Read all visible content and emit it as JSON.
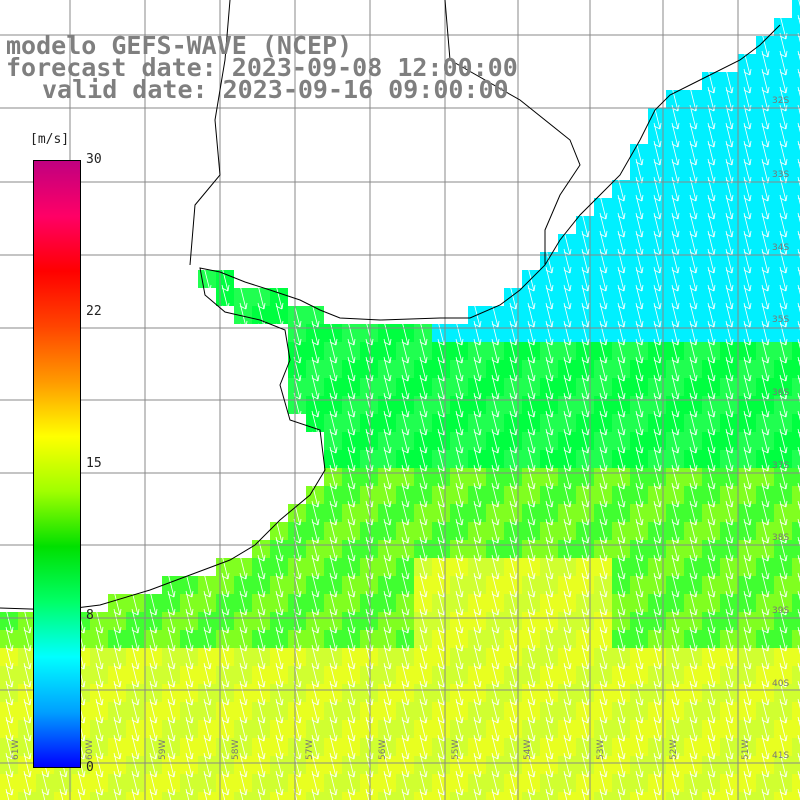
{
  "titles": {
    "line1": "modelo GEFS-WAVE (NCEP)",
    "line2": "forecast date: 2023-09-08 12:00:00",
    "line3": "valid date: 2023-09-16 09:00:00"
  },
  "colorbar": {
    "units": "[m/s]",
    "ticks": [
      "30",
      "22",
      "15",
      "8",
      "0"
    ],
    "colors": [
      "#0000ff",
      "#00a0ff",
      "#00ffff",
      "#00ff66",
      "#00e000",
      "#a0ff00",
      "#ffff00",
      "#ff9900",
      "#ff4400",
      "#ff0000",
      "#ff0066",
      "#c00080"
    ]
  },
  "lon_labels": [
    "61W",
    "60W",
    "59W",
    "58W",
    "57W",
    "56W",
    "55W",
    "54W",
    "53W",
    "52W",
    "51W"
  ],
  "lat_labels": [
    "32S",
    "33S",
    "34S",
    "35S",
    "36S",
    "37S",
    "38S",
    "39S",
    "40S",
    "41S"
  ],
  "map": {
    "ocean_color_cyan": "#00f0ff",
    "ocean_color_green": "#00ff40",
    "ocean_color_yellow": "#ffff00",
    "arrow_color": "#ffffff",
    "wind_direction": "south-southwest"
  }
}
